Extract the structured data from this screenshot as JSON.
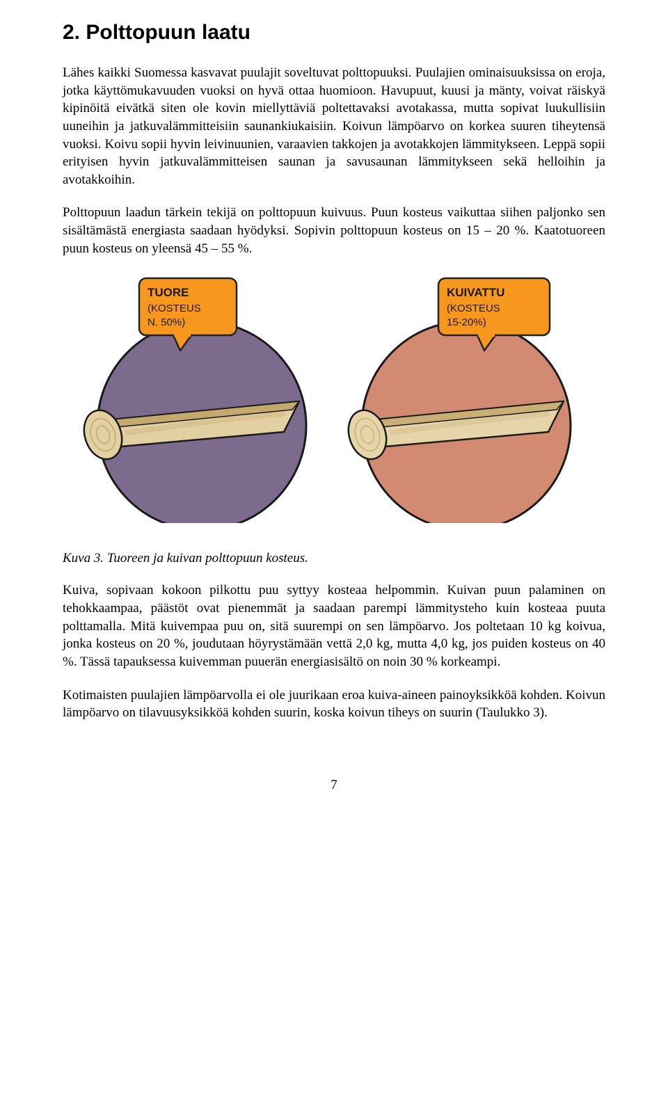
{
  "heading": "2. Polttopuun laatu",
  "para1": "Lähes kaikki Suomessa kasvavat puulajit soveltuvat polttopuuksi. Puulajien ominaisuuksissa on eroja, jotka käyttömukavuuden vuoksi on hyvä ottaa huomioon. Havupuut, kuusi ja mänty, voivat räiskyä kipinöitä eivätkä siten ole kovin miellyttäviä poltettavaksi avotakassa, mutta sopivat luukullisiin uuneihin ja jatkuvalämmitteisiin saunankiukaisiin. Koivun lämpöarvo on korkea suuren tiheytensä vuoksi. Koivu sopii hyvin leivinuunien, varaavien takkojen ja avotakkojen lämmitykseen. Leppä sopii erityisen hyvin jatkuvalämmitteisen saunan ja savusaunan lämmitykseen sekä helloihin ja avotakkoihin.",
  "para2": "Polttopuun laadun tärkein tekijä on polttopuun kuivuus. Puun kosteus vaikuttaa siihen paljonko sen sisältämästä energiasta saadaan hyödyksi. Sopivin polttopuun kosteus on 15 – 20 %. Kaatotuoreen puun kosteus on yleensä 45 – 55 %.",
  "caption": "Kuva 3. Tuoreen ja kuivan polttopuun kosteus.",
  "para3": "Kuiva, sopivaan kokoon pilkottu puu syttyy kosteaa helpommin. Kuivan puun palaminen on tehokkaampaa, päästöt ovat pienemmät ja saadaan parempi lämmitysteho kuin kosteaa puuta polttamalla. Mitä kuivempaa puu on, sitä suurempi on sen lämpöarvo. Jos poltetaan 10 kg koivua, jonka kosteus on 20 %, joudutaan höyrystämään vettä 2,0 kg, mutta 4,0 kg, jos puiden kosteus on 40 %. Tässä tapauksessa kuivemman puuerän energiasisältö on noin 30 % korkeampi.",
  "para4": "Kotimaisten puulajien lämpöarvolla ei ole juurikaan eroa kuiva-aineen painoyksikköä kohden. Koivun lämpöarvo on tilavuusyksikköä kohden suurin, koska koivun tiheys on suurin (Taulukko 3).",
  "pagenum": "7",
  "figure": {
    "left": {
      "label_title": "TUORE",
      "label_line2": "(KOSTEUS",
      "label_line3": "N. 50%)",
      "box_fill": "#f8971d",
      "box_stroke": "#222222",
      "circle_fill": "#7d6b8e",
      "circle_stroke": "#1a1a1a",
      "log_fill": "#e2cfa2",
      "log_dark": "#c4a86e",
      "log_stroke": "#1a1a1a"
    },
    "right": {
      "label_title": "KUIVATTU",
      "label_line2": "(KOSTEUS",
      "label_line3": "15-20%)",
      "box_fill": "#f8971d",
      "box_stroke": "#222222",
      "circle_fill": "#d28b72",
      "circle_stroke": "#1a1a1a",
      "log_fill": "#e6d4aa",
      "log_dark": "#c9ae76",
      "log_stroke": "#1a1a1a"
    },
    "label_font": "Arial, Helvetica, sans-serif",
    "label_title_size": 17,
    "label_sub_size": 15,
    "label_text_color": "#1a1a1a"
  }
}
